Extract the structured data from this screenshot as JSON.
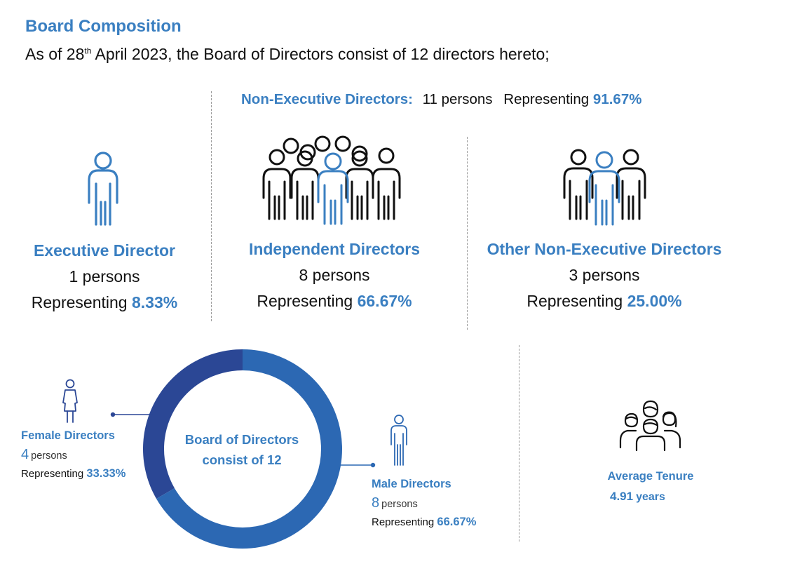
{
  "title": "Board Composition",
  "intro": {
    "before": "As of 28",
    "sup": "th",
    "after": " April 2023, the Board of Directors consist of 12 directors hereto;"
  },
  "non_executive": {
    "label": "Non-Executive Directors:",
    "persons": "11 persons",
    "representing_label": "Representing",
    "percent": "91.67%"
  },
  "groups": [
    {
      "title": "Executive Director",
      "persons": "1 persons",
      "representing_label": "Representing",
      "percent": "8.33%",
      "icon": "person-icon"
    },
    {
      "title": "Independent Directors",
      "persons": "8 persons",
      "representing_label": "Representing",
      "percent": "66.67%",
      "icon": "crowd-icon"
    },
    {
      "title": "Other Non-Executive Directors",
      "persons": "3 persons",
      "representing_label": "Representing",
      "percent": "25.00%",
      "icon": "group-of-three-icon"
    }
  ],
  "gender": {
    "center_line1": "Board of Directors",
    "center_line2": "consist of 12",
    "female": {
      "label": "Female Directors",
      "count": "4",
      "unit": "persons",
      "representing_label": "Representing",
      "percent": "33.33%",
      "share": 0.3333,
      "color": "#2b4795",
      "icon": "female-person-icon"
    },
    "male": {
      "label": "Male Directors",
      "count": "8",
      "unit": "persons",
      "representing_label": "Representing",
      "percent": "66.67%",
      "share": 0.6667,
      "color": "#2c68b3",
      "icon": "male-person-icon"
    }
  },
  "tenure": {
    "label": "Average Tenure",
    "value": "4.91",
    "unit": "years",
    "icon": "diverse-group-icon"
  },
  "colors": {
    "accent": "#3a7fc1",
    "donut_female": "#2b4795",
    "donut_male": "#2c68b3"
  }
}
